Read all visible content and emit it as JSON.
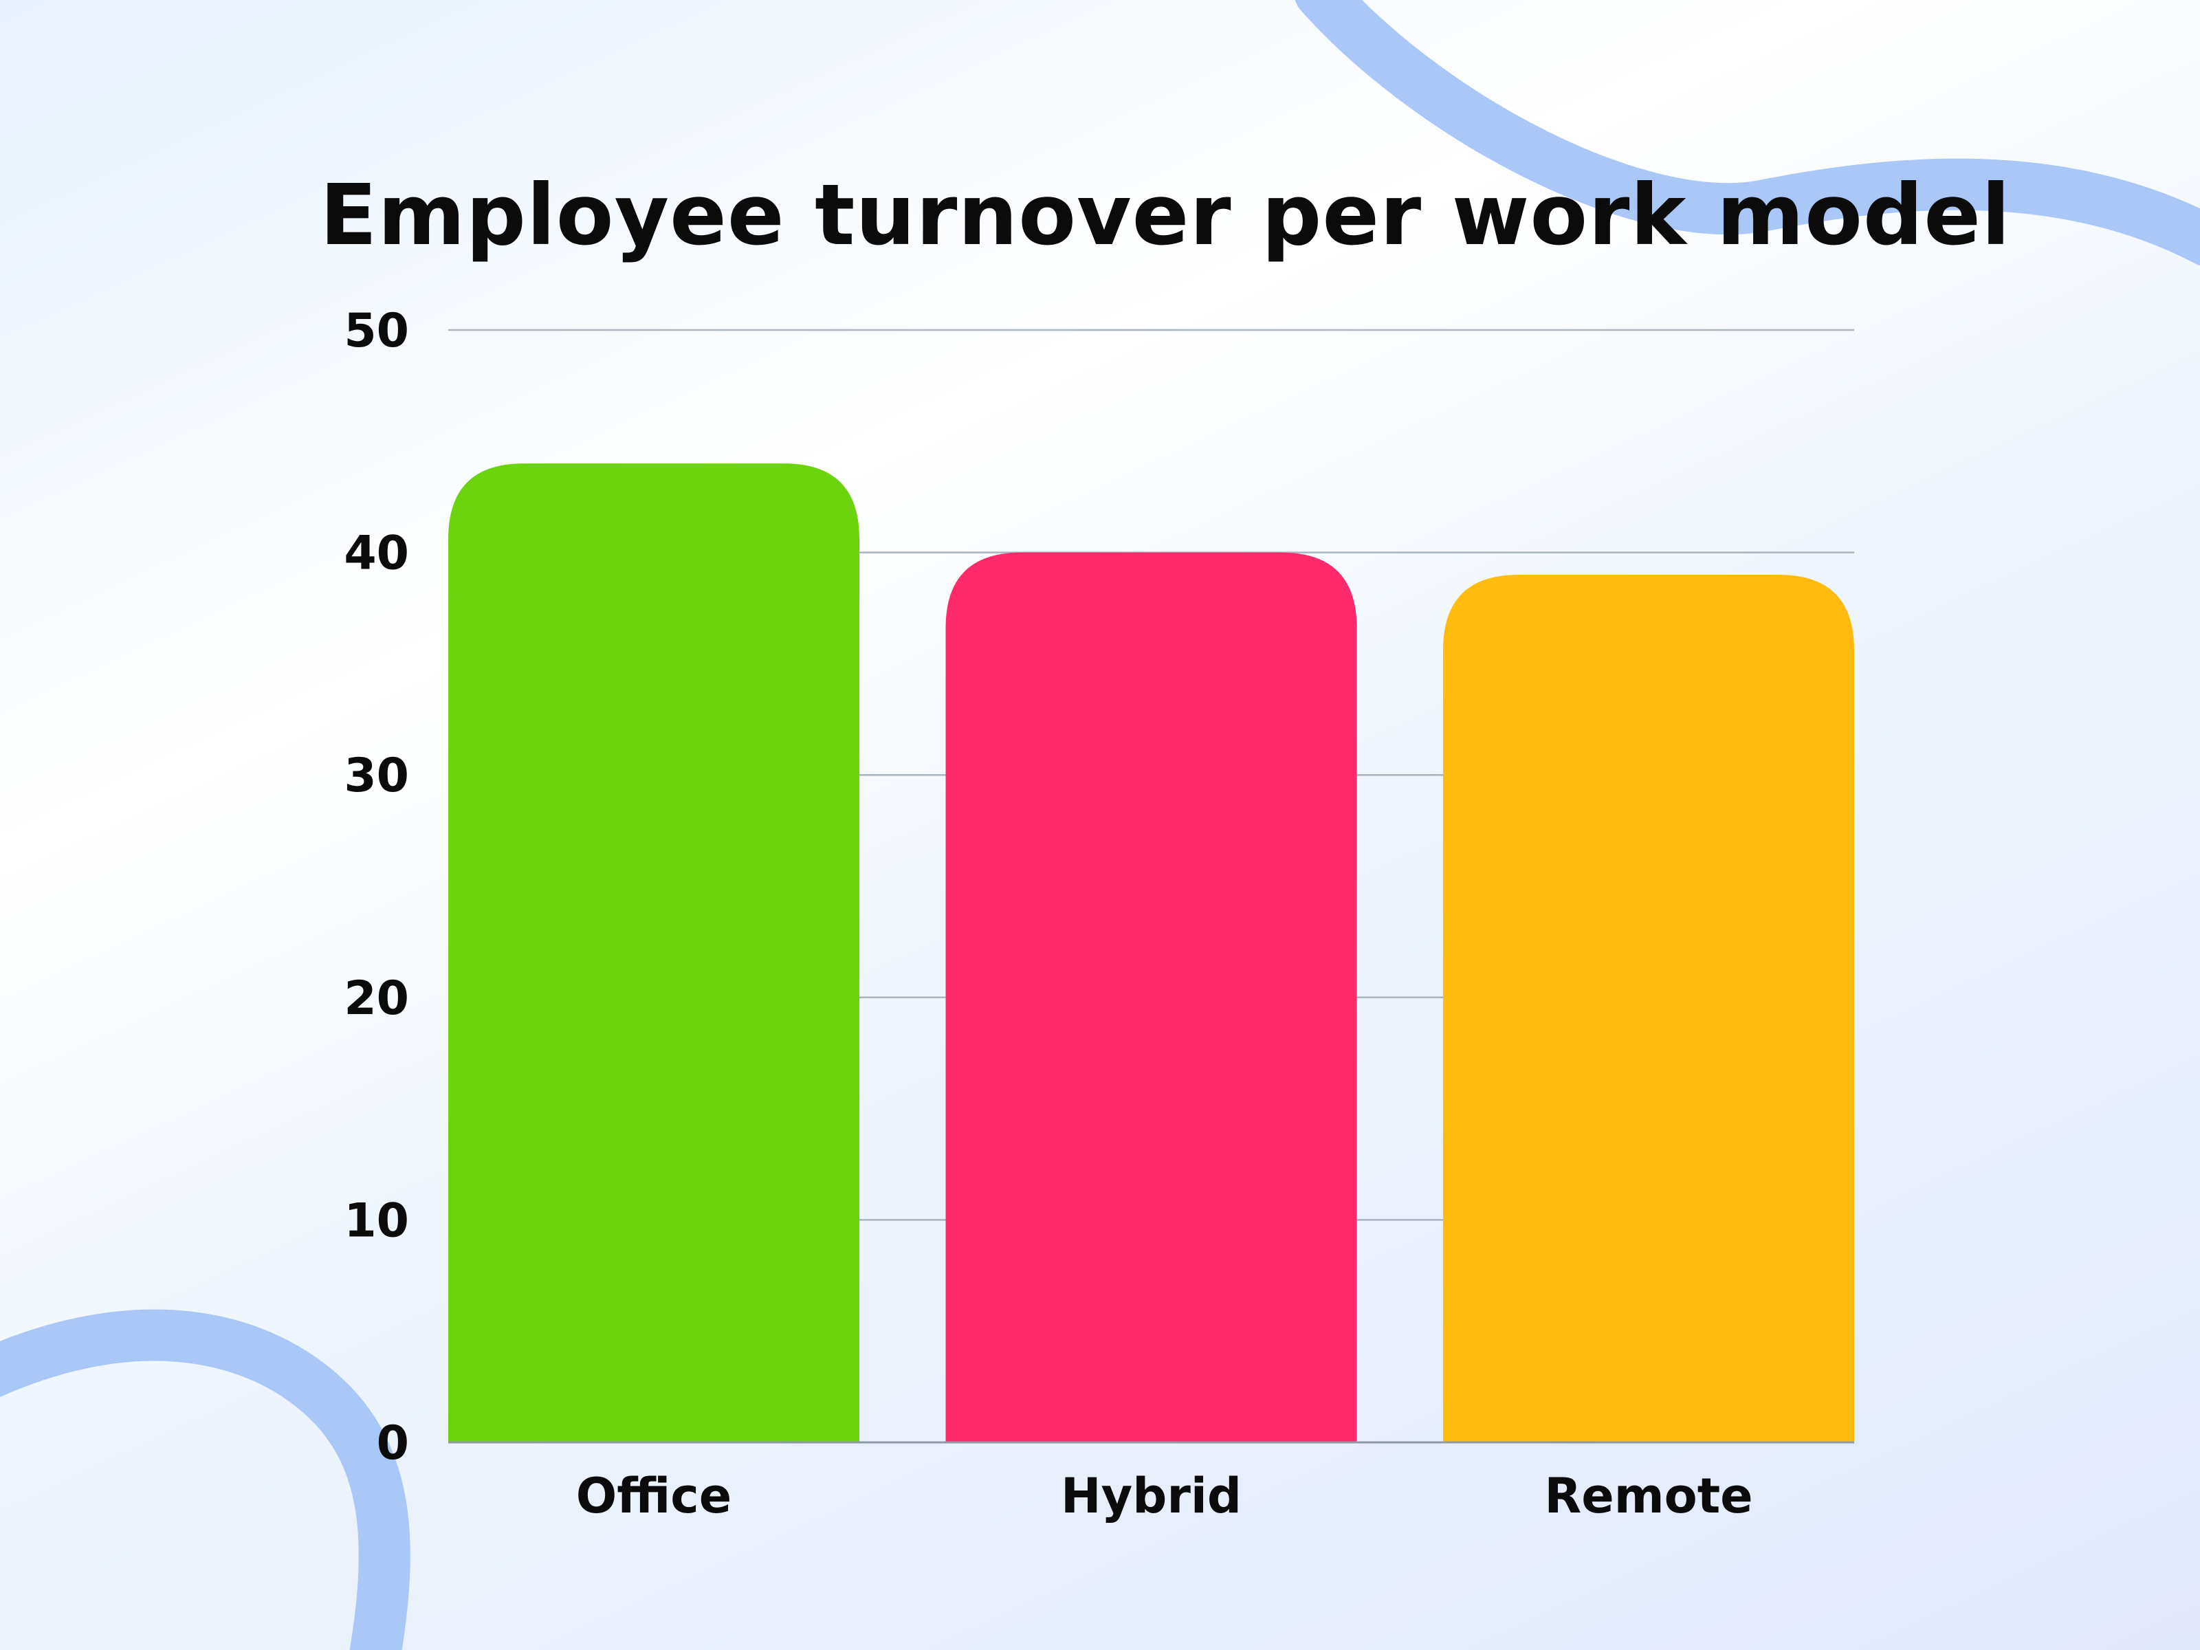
{
  "colors": {
    "background_accent": "#a9c8f8",
    "gridline": "#a9b4bf"
  },
  "chart_data": {
    "type": "bar",
    "title": "Employee turnover per work model",
    "xlabel": "",
    "ylabel": "",
    "categories": [
      "Office",
      "Hybrid",
      "Remote"
    ],
    "values": [
      44,
      40,
      39
    ],
    "bar_colors": [
      "#6cd30f",
      "#ff2a6b",
      "#ffbc0f"
    ],
    "ylim": [
      0,
      50
    ],
    "yticks": [
      "0",
      "10",
      "20",
      "30",
      "40",
      "50"
    ],
    "grid": true,
    "legend": "none"
  }
}
